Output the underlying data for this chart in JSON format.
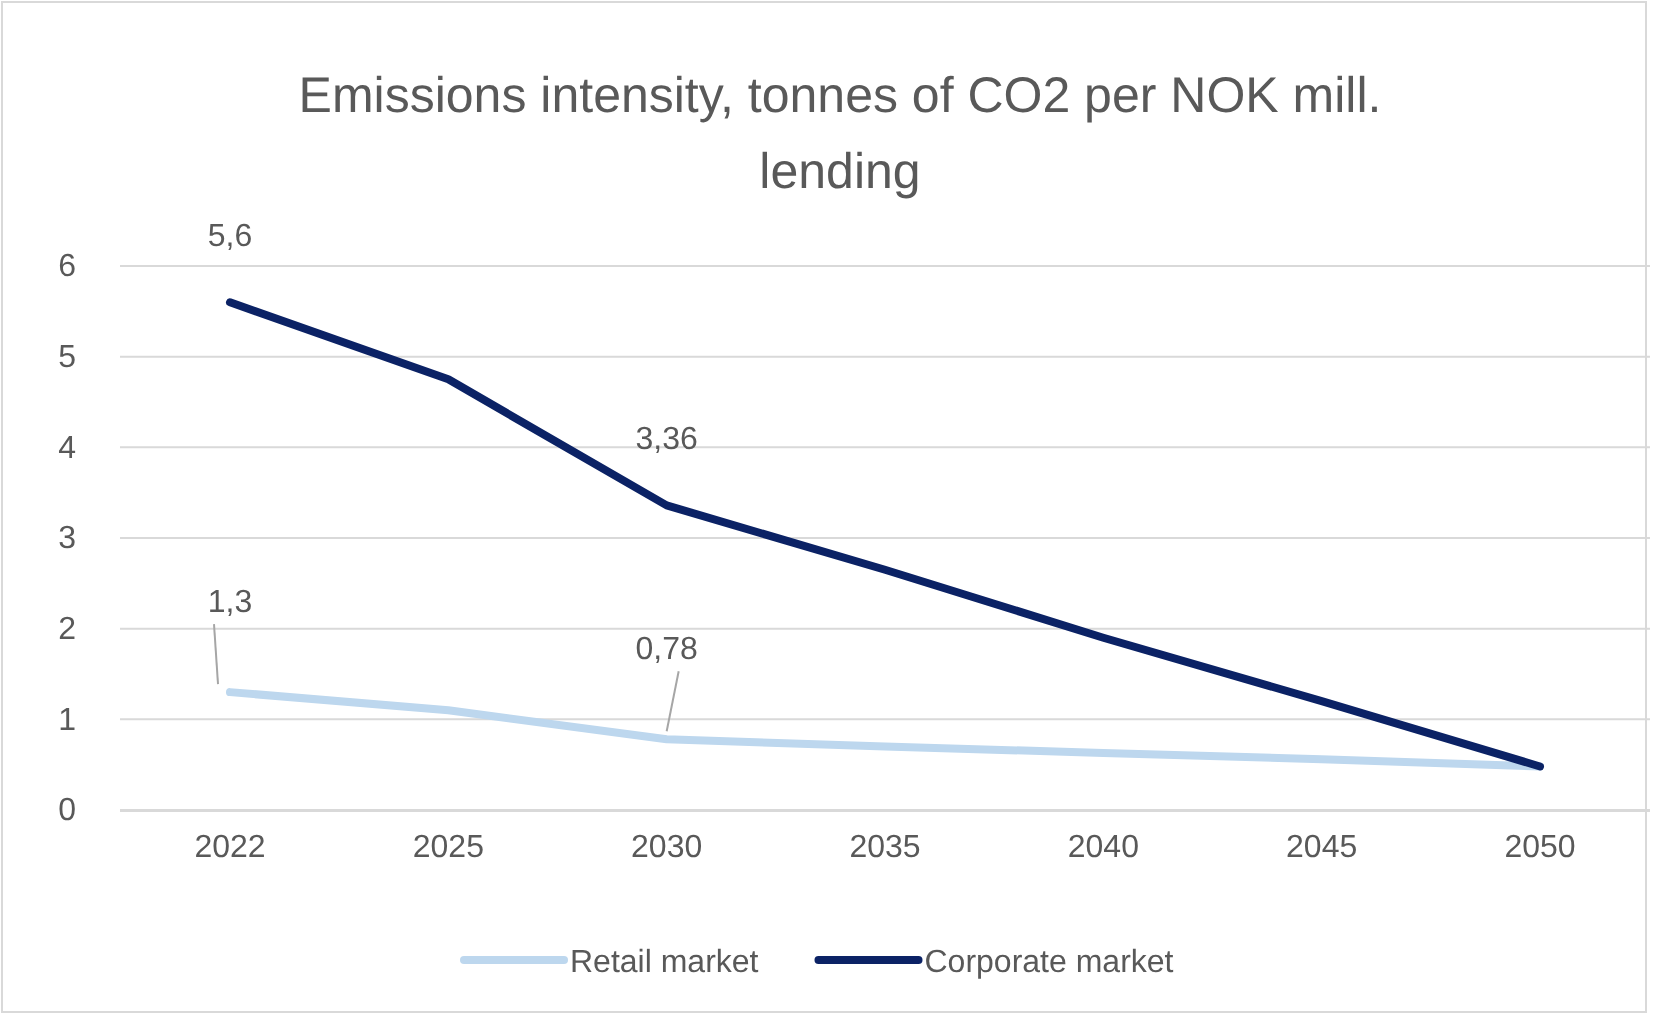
{
  "chart_data": {
    "type": "line",
    "title": "Emissions intensity, tonnes of CO2 per NOK mill. lending",
    "categories": [
      "2022",
      "2025",
      "2030",
      "2035",
      "2040",
      "2045",
      "2050"
    ],
    "series": [
      {
        "name": "Retail market",
        "color": "#bdd7ee",
        "values": [
          1.3,
          1.1,
          0.78,
          0.7,
          0.63,
          0.56,
          0.48
        ],
        "value_labels": [
          "1,3",
          null,
          "0,78",
          null,
          null,
          null,
          null
        ]
      },
      {
        "name": "Corporate market",
        "color": "#0b2265",
        "values": [
          5.6,
          4.75,
          3.36,
          2.65,
          1.9,
          1.2,
          0.48
        ],
        "value_labels": [
          "5,6",
          null,
          "3,36",
          null,
          null,
          null,
          null
        ]
      }
    ],
    "ylim": [
      0,
      6
    ],
    "yticks": [
      0,
      1,
      2,
      3,
      4,
      5,
      6
    ],
    "grid": "y",
    "legend": "bottom",
    "marker": "none",
    "line_style": "solid"
  }
}
